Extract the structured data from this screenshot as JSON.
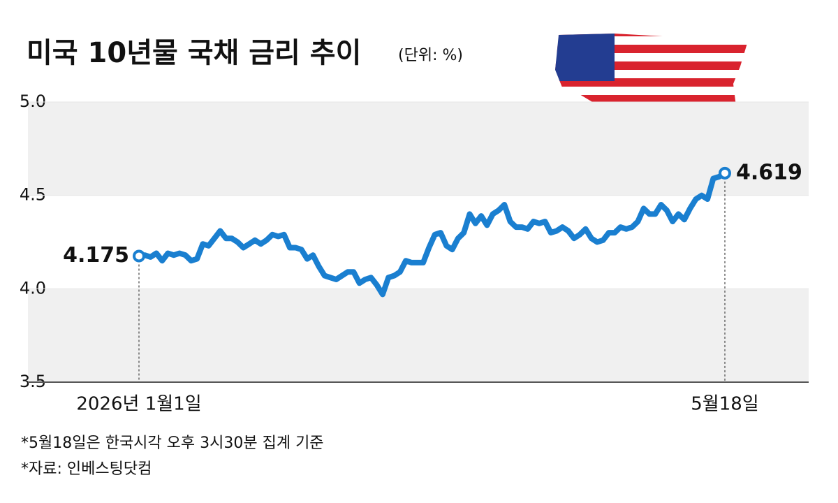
{
  "chart_data": {
    "type": "line",
    "title": "미국 10년물 국채 금리 추이",
    "subtitle": "(단위: %)",
    "notes": [
      "*5월18일은 한국시각 오후 3시30분 집계 기준",
      "*자료: 인베스팅닷컴"
    ],
    "categories": [
      "2026년 1월1일",
      null,
      null,
      null,
      null,
      null,
      null,
      null,
      null,
      null,
      null,
      null,
      null,
      null,
      null,
      null,
      null,
      null,
      null,
      null,
      null,
      null,
      null,
      null,
      null,
      null,
      null,
      null,
      null,
      null,
      null,
      null,
      null,
      null,
      null,
      null,
      null,
      null,
      null,
      null,
      null,
      null,
      null,
      null,
      null,
      null,
      null,
      null,
      null,
      null,
      null,
      null,
      null,
      null,
      null,
      null,
      null,
      null,
      null,
      null,
      null,
      null,
      null,
      null,
      null,
      null,
      null,
      null,
      null,
      null,
      null,
      null,
      null,
      null,
      null,
      null,
      null,
      null,
      null,
      null,
      null,
      null,
      null,
      null,
      null,
      null,
      null,
      null,
      null,
      null,
      null,
      null,
      null,
      null,
      null,
      null,
      null,
      null,
      null,
      null,
      null,
      "5월18일"
    ],
    "values": [
      4.175,
      4.18,
      4.17,
      4.19,
      4.15,
      4.19,
      4.18,
      4.19,
      4.18,
      4.15,
      4.16,
      4.24,
      4.23,
      4.27,
      4.31,
      4.27,
      4.27,
      4.25,
      4.22,
      4.24,
      4.26,
      4.24,
      4.26,
      4.29,
      4.28,
      4.29,
      4.22,
      4.22,
      4.21,
      4.16,
      4.18,
      4.12,
      4.07,
      4.06,
      4.05,
      4.07,
      4.09,
      4.09,
      4.03,
      4.05,
      4.06,
      4.02,
      3.97,
      4.06,
      4.07,
      4.09,
      4.15,
      4.14,
      4.14,
      4.14,
      4.22,
      4.29,
      4.3,
      4.23,
      4.21,
      4.27,
      4.3,
      4.4,
      4.35,
      4.39,
      4.34,
      4.4,
      4.42,
      4.45,
      4.36,
      4.33,
      4.33,
      4.32,
      4.36,
      4.35,
      4.36,
      4.3,
      4.31,
      4.33,
      4.31,
      4.27,
      4.29,
      4.32,
      4.27,
      4.25,
      4.26,
      4.3,
      4.3,
      4.33,
      4.32,
      4.33,
      4.36,
      4.43,
      4.4,
      4.4,
      4.45,
      4.42,
      4.36,
      4.4,
      4.37,
      4.43,
      4.48,
      4.5,
      4.48,
      4.59,
      4.6,
      4.619
    ],
    "color": "#1a7fd0",
    "ylim": [
      3.5,
      5.0
    ],
    "yticks": [
      3.5,
      {
        "value": 4,
        "label": "4.0"
      },
      4.5,
      {
        "value": 5,
        "label": "5.0"
      }
    ],
    "grid": true
  }
}
